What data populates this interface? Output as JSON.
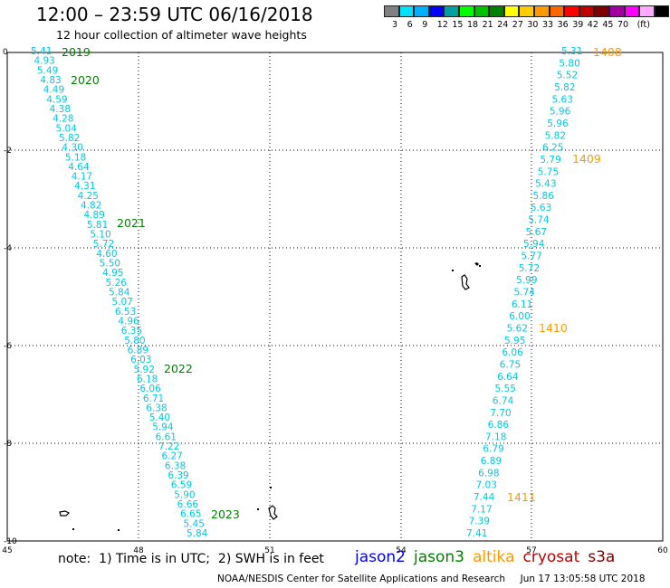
{
  "header": {
    "title": "12:00 – 23:59 UTC 06/16/2018",
    "subtitle": "12 hour collection of altimeter wave heights"
  },
  "colorbar": {
    "colors": [
      "#808080",
      "#00e0ff",
      "#00b0ff",
      "#0000ff",
      "#00a0a0",
      "#00ff00",
      "#00c000",
      "#008000",
      "#ffff00",
      "#ffcc00",
      "#ff9900",
      "#ff6600",
      "#ff0000",
      "#c00000",
      "#800000",
      "#a000a0",
      "#ff00ff",
      "#ffaaff",
      "#000000"
    ],
    "labels": [
      "3",
      "6",
      "9",
      "12",
      "15",
      "18",
      "21",
      "24",
      "27",
      "30",
      "33",
      "36",
      "39",
      "42",
      "45",
      "70",
      "(ft)"
    ]
  },
  "axes": {
    "y_ticks": [
      "0",
      "-2",
      "-4",
      "-6",
      "-8",
      "-10"
    ],
    "x_ticks": [
      "45",
      "48",
      "51",
      "54",
      "57",
      "60"
    ]
  },
  "tracks": {
    "west": {
      "values": [
        "5.41",
        "4.93",
        "5.49",
        "4.83",
        "4.49",
        "4.59",
        "4.38",
        "4.28",
        "5.04",
        "5.82",
        "4.30",
        "5.18",
        "4.64",
        "4.17",
        "4.31",
        "4.25",
        "4.82",
        "4.89",
        "5.81",
        "5.10",
        "5.72",
        "4.60",
        "5.50",
        "4.95",
        "5.26",
        "5.84",
        "5.07",
        "6.53",
        "4.96",
        "6.35",
        "5.80",
        "6.89",
        "6.03",
        "5.92",
        "6.18",
        "6.06",
        "6.71",
        "6.38",
        "5.40",
        "5.94",
        "6.61",
        "7.22",
        "6.27",
        "6.38",
        "6.39",
        "6.59",
        "5.90",
        "6.66",
        "6.65",
        "5.45",
        "5.84"
      ],
      "passes": [
        {
          "label": "2019",
          "color": "#008000"
        },
        {
          "label": "2020",
          "color": "#008000"
        },
        {
          "label": "2021",
          "color": "#008000"
        },
        {
          "label": "2022",
          "color": "#008000"
        },
        {
          "label": "2023",
          "color": "#008000"
        }
      ]
    },
    "east": {
      "values": [
        "5.31",
        "5.80",
        "5.52",
        "5.82",
        "5.63",
        "5.96",
        "5.96",
        "5.82",
        "6.25",
        "5.79",
        "5.75",
        "5.43",
        "5.86",
        "5.63",
        "5.74",
        "5.67",
        "5.94",
        "5.77",
        "5.72",
        "5.99",
        "5.74",
        "6.11",
        "6.00",
        "5.62",
        "5.95",
        "6.06",
        "6.75",
        "6.64",
        "5.55",
        "6.74",
        "7.70",
        "6.86",
        "7.18",
        "6.79",
        "6.89",
        "6.98",
        "7.03",
        "7.44",
        "7.17",
        "7.39",
        "7.41"
      ],
      "passes": [
        {
          "label": "1408",
          "color": "#ff9900"
        },
        {
          "label": "1409",
          "color": "#ff9900"
        },
        {
          "label": "1410",
          "color": "#ff9900"
        },
        {
          "label": "1411",
          "color": "#ff9900"
        }
      ]
    }
  },
  "footer": {
    "note": "note:  1) Time is in UTC;  2) SWH is in feet",
    "legend": [
      {
        "label": "jason2",
        "color": "#0000ff"
      },
      {
        "label": "jason3",
        "color": "#008000"
      },
      {
        "label": "altika",
        "color": "#ff9900"
      },
      {
        "label": "cryosat",
        "color": "#c00000"
      },
      {
        "label": "s3a",
        "color": "#800000"
      }
    ],
    "credit": "NOAA/NESDIS Center for Satellite Applications and Research     Jun 17 13:05:58 UTC 2018"
  }
}
